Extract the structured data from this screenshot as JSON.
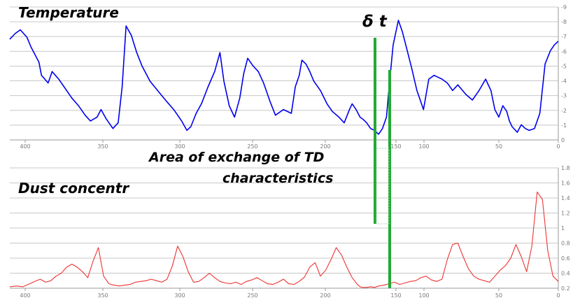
{
  "chart_data": [
    {
      "type": "line",
      "title": "Temperature",
      "xlabel": "",
      "ylabel": "",
      "x_direction": "descending",
      "xlim": [
        415,
        0
      ],
      "ylim": [
        0,
        7
      ],
      "x_ticks": [
        "400",
        "350",
        "300",
        "250",
        "200",
        "150",
        "100",
        "50",
        "0"
      ],
      "y_ticks": [
        "0",
        "-1",
        "-2",
        "-3",
        "-4",
        "-5",
        "-6",
        "-7",
        "-8",
        "-9"
      ],
      "grid": true,
      "series": [
        {
          "color": "#0000ee",
          "x": [
            415,
            411,
            407,
            402,
            399,
            393,
            391,
            386,
            383,
            378,
            374,
            368,
            363,
            358,
            354,
            349,
            346,
            342,
            337,
            333,
            330,
            327,
            323,
            319,
            315,
            309,
            302,
            296,
            291,
            285,
            281,
            278,
            274,
            270,
            265,
            260,
            256,
            253,
            249,
            245,
            241,
            238,
            235,
            231,
            227,
            223,
            218,
            214,
            208,
            202,
            199,
            196,
            194,
            191,
            188,
            185,
            180,
            175,
            171,
            166,
            162,
            158,
            156,
            153,
            150,
            148,
            145,
            142,
            139,
            136,
            133,
            130,
            128,
            125,
            121,
            118,
            115,
            111,
            107,
            102,
            98,
            94,
            88,
            84,
            80,
            76,
            70,
            65,
            60,
            55,
            51,
            48,
            45,
            42,
            39,
            37,
            35,
            31,
            28,
            25,
            22,
            18,
            14,
            10,
            6,
            3,
            0
          ],
          "y": [
            5.3,
            5.6,
            5.8,
            5.4,
            4.9,
            4.1,
            3.4,
            3.0,
            3.6,
            3.2,
            2.8,
            2.2,
            1.8,
            1.3,
            1.0,
            1.2,
            1.6,
            1.1,
            0.6,
            0.9,
            2.8,
            6.0,
            5.5,
            4.6,
            3.9,
            3.1,
            2.5,
            2.0,
            1.6,
            1.0,
            0.5,
            0.7,
            1.4,
            1.9,
            2.8,
            3.6,
            4.6,
            3.1,
            1.8,
            1.2,
            2.2,
            3.5,
            4.3,
            3.9,
            3.6,
            3.0,
            2.0,
            1.3,
            1.6,
            1.4,
            2.8,
            3.4,
            4.2,
            4.0,
            3.6,
            3.1,
            2.6,
            1.9,
            1.5,
            1.2,
            0.9,
            1.6,
            1.9,
            1.6,
            1.2,
            1.1,
            0.9,
            0.6,
            0.5,
            0.3,
            0.6,
            1.2,
            2.8,
            5.0,
            6.3,
            5.7,
            4.9,
            3.8,
            2.6,
            1.6,
            3.2,
            3.4,
            3.2,
            3.0,
            2.6,
            2.9,
            2.4,
            2.1,
            2.6,
            3.2,
            2.6,
            1.6,
            1.2,
            1.8,
            1.5,
            1.0,
            0.7,
            0.4,
            0.8,
            0.6,
            0.5,
            0.6,
            1.4,
            4.0,
            4.7,
            5.0,
            5.2
          ]
        }
      ]
    },
    {
      "type": "line",
      "title": "Dust concentr",
      "xlabel": "",
      "ylabel": "",
      "x_direction": "descending",
      "xlim": [
        415,
        0
      ],
      "ylim": [
        0,
        16
      ],
      "x_ticks": [
        "400",
        "350",
        "300",
        "250",
        "200",
        "150",
        "100",
        "50",
        "0"
      ],
      "y_ticks": [
        "0.2",
        "0.4",
        "0.6",
        "0.8",
        "1",
        "1.2",
        "1.4",
        "1.6",
        "1.8"
      ],
      "grid": true,
      "series": [
        {
          "color": "#ee3333",
          "x": [
            415,
            410,
            405,
            400,
            396,
            392,
            388,
            384,
            380,
            376,
            372,
            368,
            364,
            360,
            356,
            352,
            348,
            344,
            340,
            336,
            332,
            328,
            324,
            320,
            316,
            312,
            308,
            304,
            300,
            296,
            292,
            288,
            284,
            280,
            276,
            272,
            268,
            264,
            260,
            256,
            252,
            248,
            244,
            240,
            236,
            232,
            228,
            224,
            220,
            216,
            212,
            208,
            204,
            200,
            196,
            192,
            188,
            184,
            180,
            176,
            172,
            168,
            164,
            160,
            156,
            152,
            150,
            148,
            145,
            142,
            139,
            136,
            132,
            128,
            124,
            120,
            116,
            112,
            108,
            104,
            100,
            96,
            92,
            88,
            84,
            80,
            76,
            72,
            68,
            64,
            60,
            56,
            52,
            48,
            44,
            40,
            36,
            32,
            28,
            24,
            20,
            16,
            12,
            8,
            4,
            0
          ],
          "y": [
            0.2,
            0.3,
            0.2,
            0.6,
            0.9,
            1.2,
            0.8,
            1.0,
            1.6,
            2.0,
            2.8,
            3.2,
            2.8,
            2.2,
            1.4,
            3.6,
            5.4,
            1.6,
            0.6,
            0.4,
            0.3,
            0.4,
            0.5,
            0.8,
            0.9,
            1.0,
            1.2,
            1.0,
            0.8,
            1.2,
            3.0,
            5.6,
            4.2,
            2.2,
            0.8,
            0.9,
            1.4,
            2.0,
            1.4,
            0.9,
            0.7,
            0.6,
            0.8,
            0.5,
            0.9,
            1.1,
            1.4,
            1.0,
            0.6,
            0.5,
            0.8,
            1.2,
            0.6,
            0.5,
            0.9,
            1.5,
            2.8,
            3.4,
            1.6,
            2.4,
            3.8,
            5.4,
            4.4,
            2.8,
            1.4,
            0.5,
            0.2,
            0.1,
            0.1,
            0.2,
            0.1,
            0.3,
            0.4,
            0.6,
            0.8,
            0.5,
            0.7,
            0.9,
            1.0,
            1.4,
            1.6,
            1.1,
            0.9,
            1.2,
            3.8,
            5.8,
            6.0,
            4.2,
            2.6,
            1.6,
            1.2,
            1.0,
            0.8,
            1.6,
            2.4,
            3.0,
            4.0,
            5.8,
            4.2,
            2.2,
            5.6,
            12.8,
            11.8,
            5.0,
            1.6,
            0.9
          ]
        }
      ]
    }
  ],
  "annotations": {
    "delta_t": "δ t",
    "exchange_line1": "Area of exchange of TD",
    "exchange_line2": "characteristics"
  },
  "colors": {
    "temperature": "#0000ee",
    "dust": "#ee3333",
    "marker": "#22aa33"
  }
}
